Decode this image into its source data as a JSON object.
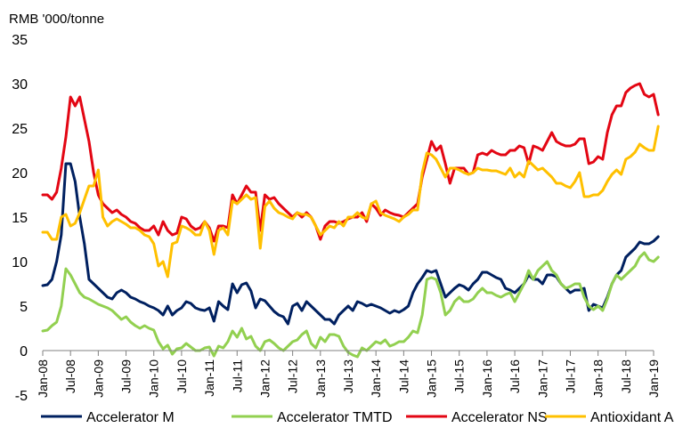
{
  "chart_data": {
    "type": "line",
    "ylabel": "RMB '000/tonne",
    "ylim": [
      -5,
      35
    ],
    "yticks": [
      -5,
      0,
      5,
      10,
      15,
      20,
      25,
      30,
      35
    ],
    "xticks": [
      "Jan-08",
      "Jul-08",
      "Jan-09",
      "Jul-09",
      "Jan-10",
      "Jul-10",
      "Jan-11",
      "Jul-11",
      "Jan-12",
      "Jul-12",
      "Jan-13",
      "Jul-13",
      "Jan-14",
      "Jul-14",
      "Jan-15",
      "Jul-15",
      "Jan-16",
      "Jul-16",
      "Jan-17",
      "Jul-17",
      "Jan-18",
      "Jul-18",
      "Jan-19"
    ],
    "x_start": "Jan-08",
    "grid": false,
    "legend_position": "bottom",
    "series": [
      {
        "name": "Accelerator M",
        "color": "#002060",
        "values": [
          7.3,
          7.4,
          8.0,
          10.0,
          13.0,
          21.0,
          21.0,
          19.0,
          15.0,
          12.0,
          8.0,
          7.5,
          7.0,
          6.5,
          6.0,
          5.8,
          6.5,
          6.8,
          6.5,
          6.0,
          5.8,
          5.5,
          5.3,
          5.0,
          4.8,
          4.5,
          4.0,
          5.0,
          4.0,
          4.5,
          4.8,
          5.5,
          5.3,
          4.8,
          4.6,
          4.5,
          4.8,
          3.3,
          5.5,
          5.0,
          4.6,
          7.5,
          6.5,
          7.4,
          7.6,
          6.7,
          4.8,
          5.8,
          5.6,
          5.0,
          4.4,
          4.0,
          3.8,
          3.0,
          5.0,
          5.3,
          4.5,
          5.5,
          5.0,
          4.5,
          4.0,
          3.5,
          3.5,
          3.0,
          4.0,
          4.5,
          5.0,
          4.5,
          5.5,
          5.3,
          5.0,
          5.2,
          5.0,
          4.8,
          4.5,
          4.2,
          4.5,
          4.3,
          4.6,
          5.0,
          6.5,
          7.5,
          8.2,
          9.0,
          8.8,
          9.0,
          7.5,
          6.0,
          6.5,
          7.0,
          7.4,
          7.2,
          6.8,
          7.5,
          8.0,
          8.8,
          8.8,
          8.5,
          8.2,
          8.0,
          7.0,
          6.8,
          6.5,
          7.0,
          7.5,
          8.5,
          8.0,
          8.0,
          7.5,
          8.5,
          8.5,
          8.3,
          7.5,
          7.0,
          6.5,
          6.8,
          6.8,
          7.0,
          4.5,
          5.2,
          5.0,
          4.8,
          6.0,
          7.5,
          8.5,
          9.0,
          10.5,
          11.0,
          11.5,
          12.2,
          12.0,
          12.0,
          12.3,
          12.8
        ]
      },
      {
        "name": "Accelerator TMTD",
        "color": "#92D050",
        "values": [
          2.2,
          2.3,
          2.8,
          3.2,
          5.0,
          9.2,
          8.5,
          7.5,
          6.5,
          6.0,
          5.8,
          5.5,
          5.2,
          5.0,
          4.8,
          4.5,
          4.0,
          3.5,
          3.8,
          3.2,
          2.8,
          2.5,
          2.8,
          2.5,
          2.3,
          1.0,
          0.2,
          0.6,
          -0.4,
          0.2,
          0.3,
          0.8,
          0.4,
          0.0,
          0.0,
          0.3,
          0.4,
          -0.6,
          0.5,
          0.3,
          1.0,
          2.2,
          1.5,
          2.5,
          1.3,
          1.6,
          0.5,
          0.0,
          1.0,
          1.2,
          0.8,
          0.3,
          0.0,
          0.5,
          1.0,
          1.2,
          1.8,
          2.2,
          0.8,
          0.3,
          1.5,
          1.0,
          1.8,
          1.8,
          1.6,
          0.5,
          -0.2,
          -0.5,
          -0.7,
          0.3,
          0.0,
          0.5,
          1.0,
          0.8,
          1.2,
          0.5,
          0.7,
          1.0,
          1.0,
          1.5,
          2.2,
          2.0,
          4.0,
          8.0,
          8.2,
          8.0,
          6.5,
          4.0,
          4.5,
          5.5,
          6.0,
          5.5,
          5.5,
          5.8,
          6.5,
          7.0,
          6.5,
          6.5,
          6.2,
          6.0,
          6.3,
          6.5,
          5.5,
          6.5,
          7.5,
          9.0,
          8.0,
          9.0,
          9.5,
          10.0,
          9.0,
          8.5,
          7.5,
          7.0,
          7.2,
          7.5,
          7.5,
          6.0,
          5.0,
          4.6,
          5.0,
          4.5,
          5.8,
          7.5,
          8.5,
          8.0,
          8.5,
          9.0,
          9.5,
          10.5,
          11.0,
          10.2,
          10.0,
          10.5
        ]
      },
      {
        "name": "Accelerator NS",
        "color": "#E30613",
        "values": [
          17.5,
          17.5,
          17.0,
          17.8,
          20.5,
          24.0,
          28.5,
          27.5,
          28.5,
          26.0,
          23.5,
          20.0,
          17.5,
          16.5,
          16.0,
          15.5,
          15.8,
          15.3,
          15.0,
          14.5,
          14.3,
          13.8,
          13.5,
          13.5,
          14.0,
          13.0,
          14.5,
          13.5,
          13.0,
          13.2,
          15.0,
          14.8,
          14.0,
          13.6,
          13.8,
          14.5,
          13.8,
          12.3,
          14.0,
          14.0,
          13.8,
          17.5,
          16.5,
          17.5,
          18.5,
          17.8,
          17.8,
          13.5,
          17.5,
          17.0,
          17.2,
          16.5,
          16.0,
          15.5,
          15.0,
          15.5,
          15.0,
          15.5,
          15.0,
          14.0,
          12.5,
          14.0,
          14.5,
          14.5,
          14.3,
          14.5,
          14.8,
          15.0,
          15.0,
          15.5,
          14.5,
          16.5,
          16.0,
          15.2,
          15.8,
          15.5,
          15.3,
          15.2,
          15.0,
          15.5,
          16.0,
          16.5,
          19.5,
          21.5,
          23.5,
          22.5,
          23.0,
          21.0,
          18.8,
          20.5,
          20.5,
          20.5,
          19.8,
          20.0,
          22.0,
          22.2,
          22.0,
          22.5,
          22.2,
          22.0,
          22.0,
          22.5,
          22.5,
          23.0,
          22.8,
          21.0,
          23.0,
          22.8,
          22.5,
          23.5,
          24.5,
          23.5,
          23.2,
          23.0,
          23.0,
          23.2,
          23.8,
          23.8,
          21.0,
          21.2,
          21.8,
          21.5,
          24.5,
          26.5,
          27.5,
          27.5,
          29.0,
          29.5,
          29.8,
          30.0,
          28.8,
          28.5,
          28.8,
          26.5
        ]
      },
      {
        "name": "Antioxidant A",
        "color": "#FFC000",
        "values": [
          13.3,
          13.3,
          12.5,
          12.5,
          15.0,
          15.3,
          14.0,
          14.3,
          15.5,
          17.0,
          18.5,
          18.5,
          20.3,
          15.0,
          14.0,
          14.5,
          14.8,
          14.5,
          14.2,
          13.8,
          13.8,
          13.5,
          13.0,
          12.8,
          12.0,
          9.5,
          10.0,
          8.3,
          12.0,
          12.2,
          14.0,
          13.8,
          13.5,
          13.0,
          13.0,
          14.5,
          13.5,
          10.8,
          13.5,
          13.8,
          13.0,
          16.8,
          16.5,
          17.0,
          17.5,
          17.0,
          17.2,
          11.5,
          16.2,
          16.8,
          16.0,
          15.5,
          15.3,
          15.0,
          14.8,
          15.5,
          15.3,
          15.3,
          15.0,
          14.0,
          13.0,
          13.5,
          14.0,
          13.8,
          14.5,
          14.0,
          15.0,
          15.0,
          15.5,
          15.0,
          14.8,
          16.5,
          16.8,
          15.5,
          15.2,
          15.0,
          14.8,
          14.5,
          15.0,
          15.3,
          15.8,
          15.8,
          20.0,
          22.2,
          22.0,
          21.5,
          20.5,
          19.5,
          20.5,
          20.5,
          20.3,
          20.0,
          19.8,
          20.0,
          20.5,
          20.3,
          20.3,
          20.2,
          20.2,
          20.0,
          19.8,
          20.5,
          19.5,
          20.0,
          19.5,
          21.3,
          20.8,
          20.3,
          20.5,
          20.0,
          19.5,
          18.8,
          18.8,
          18.5,
          18.3,
          19.0,
          20.0,
          17.3,
          17.3,
          17.5,
          17.5,
          18.0,
          19.0,
          19.8,
          20.3,
          19.8,
          21.5,
          21.8,
          22.3,
          23.2,
          22.8,
          22.5,
          22.5,
          25.2
        ]
      }
    ]
  }
}
